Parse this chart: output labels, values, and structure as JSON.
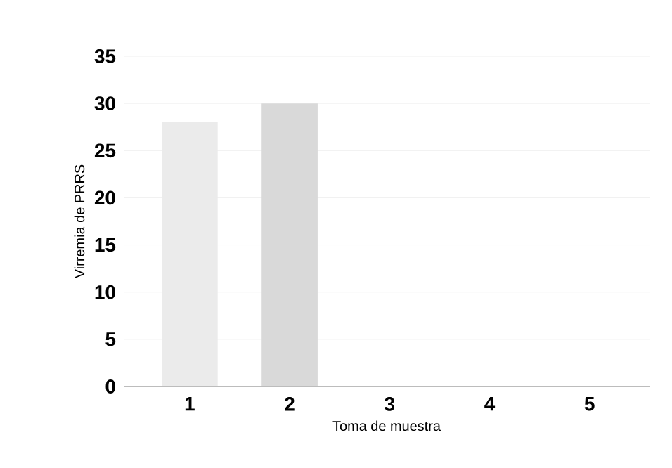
{
  "chart_data": {
    "type": "bar",
    "xlabel": "Toma de muestra",
    "ylabel": "Virremia de PRRS",
    "categories": [
      "1",
      "2",
      "3",
      "4",
      "5"
    ],
    "values": [
      28,
      30,
      null,
      null,
      null
    ],
    "colors": [
      "#ebebeb",
      "#d9d9d9",
      "#d9d9d9",
      "#d9d9d9",
      "#d9d9d9"
    ],
    "ylim": [
      0,
      35
    ],
    "yticks": [
      0,
      5,
      10,
      15,
      20,
      25,
      30,
      35
    ],
    "grid": "y"
  }
}
